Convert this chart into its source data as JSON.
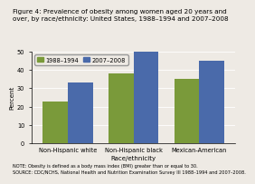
{
  "title_line1": "Figure 4: Prevalence of obesity among women aged 20 years and",
  "title_line2": "over, by race/ethnicity: United States, 1988–1994 and 2007–2008",
  "categories": [
    "Non-Hispanic white",
    "Non-Hispanic black",
    "Mexican-American"
  ],
  "series": [
    {
      "label": "1988–1994",
      "values": [
        23,
        38,
        35
      ],
      "color": "#7A9A3A"
    },
    {
      "label": "2007–2008",
      "values": [
        33,
        50,
        45
      ],
      "color": "#4A6AAA"
    }
  ],
  "xlabel": "Race/ethnicity",
  "ylabel": "Percent",
  "ylim": [
    0,
    50
  ],
  "yticks": [
    0,
    10,
    20,
    30,
    40,
    50
  ],
  "note_line1": "NOTE: Obesity is defined as a body mass index (BMI) greater than or equal to 30.",
  "note_line2": "SOURCE: CDC/NCHS, National Health and Nutrition Examination Survey III 1988–1994 and 2007–2008.",
  "background_color": "#EEEAE4",
  "bar_width": 0.38,
  "title_fontsize": 5.2,
  "axis_fontsize": 5.0,
  "tick_fontsize": 4.8,
  "legend_fontsize": 4.8,
  "note_fontsize": 3.6
}
